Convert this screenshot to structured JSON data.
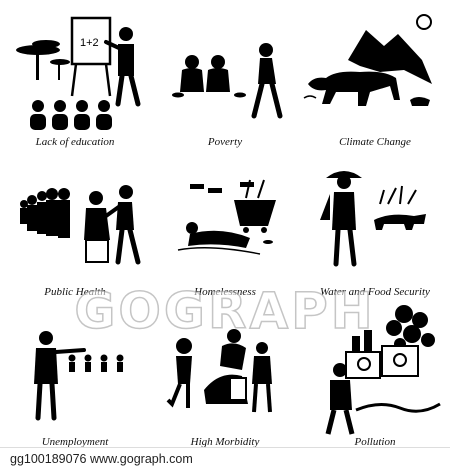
{
  "captions": [
    "Lack of education",
    "Poverty",
    "Climate Change",
    "Public Health",
    "Homelessness",
    "Water and Food Security",
    "Unemployment",
    "High Morbidity",
    "Pollution"
  ],
  "board_text": "1+2",
  "watermark": "GOGRAPH",
  "footer": "gg100189076  www.gograph.com",
  "icon_color": "#000000"
}
